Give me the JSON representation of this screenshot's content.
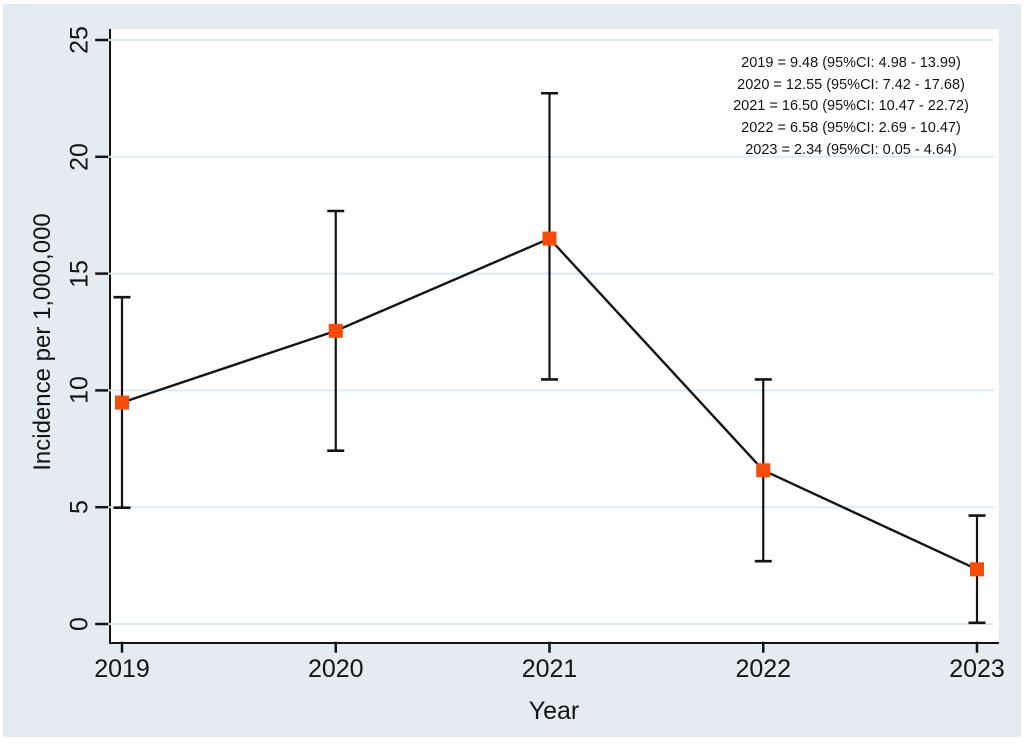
{
  "figure": {
    "background_color": "#e4ebf1",
    "plot_background": "#ffffff",
    "grid_color": "#dfeaf3",
    "axis_color": "#141414",
    "line_color": "#141414",
    "marker_color": "#f84b08"
  },
  "chart_data": {
    "type": "line",
    "x": [
      "2019",
      "2020",
      "2021",
      "2022",
      "2023"
    ],
    "series": [
      {
        "name": "Incidence",
        "values": [
          9.48,
          12.55,
          16.5,
          6.58,
          2.34
        ]
      }
    ],
    "ci_low": [
      4.98,
      7.42,
      10.47,
      2.69,
      0.05
    ],
    "ci_high": [
      13.99,
      17.68,
      22.72,
      10.47,
      4.64
    ],
    "title": "",
    "xlabel": "Year",
    "ylabel": "Incidence per 1,000,000",
    "ylim": [
      0,
      25
    ],
    "yticks": [
      0,
      5,
      10,
      15,
      20,
      25
    ],
    "grid": "horizontal-only",
    "legend": "none",
    "error_bars": true,
    "annotation_lines": [
      "2019 = 9.48 (95%CI: 4.98 - 13.99)",
      "2020 = 12.55 (95%CI: 7.42 - 17.68)",
      "2021 = 16.50 (95%CI: 10.47 - 22.72)",
      "2022 = 6.58 (95%CI: 2.69 - 10.47)",
      "2023 = 2.34 (95%CI: 0.05 - 4.64)"
    ]
  }
}
